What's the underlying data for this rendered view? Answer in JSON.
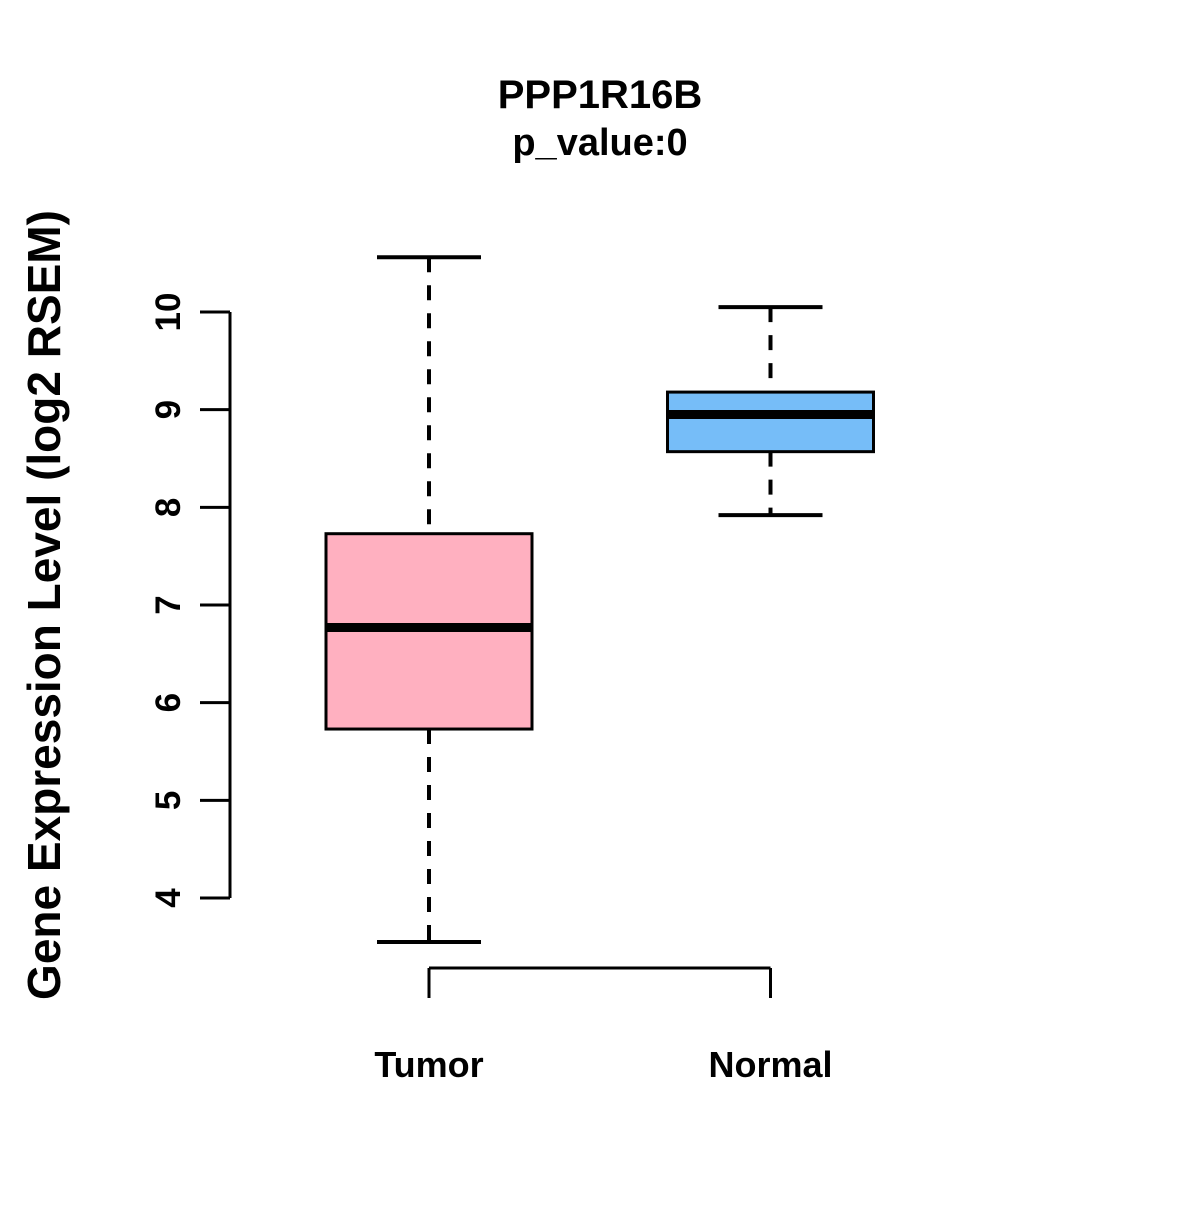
{
  "chart_data": {
    "type": "boxplot",
    "title": "PPP1R16B",
    "subtitle": "p_value:0",
    "ylabel": "Gene Expression Level (log2 RSEM)",
    "xlabel": "",
    "yticks": [
      4,
      5,
      6,
      7,
      8,
      9,
      10
    ],
    "ylim": [
      3.4,
      10.7
    ],
    "grid": false,
    "legend": "none",
    "categories": [
      "Tumor",
      "Normal"
    ],
    "series": [
      {
        "name": "Tumor",
        "fill_color": "#FFB0C0",
        "whisker_low": 3.55,
        "q1": 5.73,
        "median": 6.77,
        "q3": 7.73,
        "whisker_high": 10.56
      },
      {
        "name": "Normal",
        "fill_color": "#76BDF8",
        "whisker_low": 7.92,
        "q1": 8.57,
        "median": 8.95,
        "q3": 9.18,
        "whisker_high": 10.05
      }
    ],
    "colors": {
      "stroke": "#000000",
      "background": "#FFFFFF"
    }
  }
}
